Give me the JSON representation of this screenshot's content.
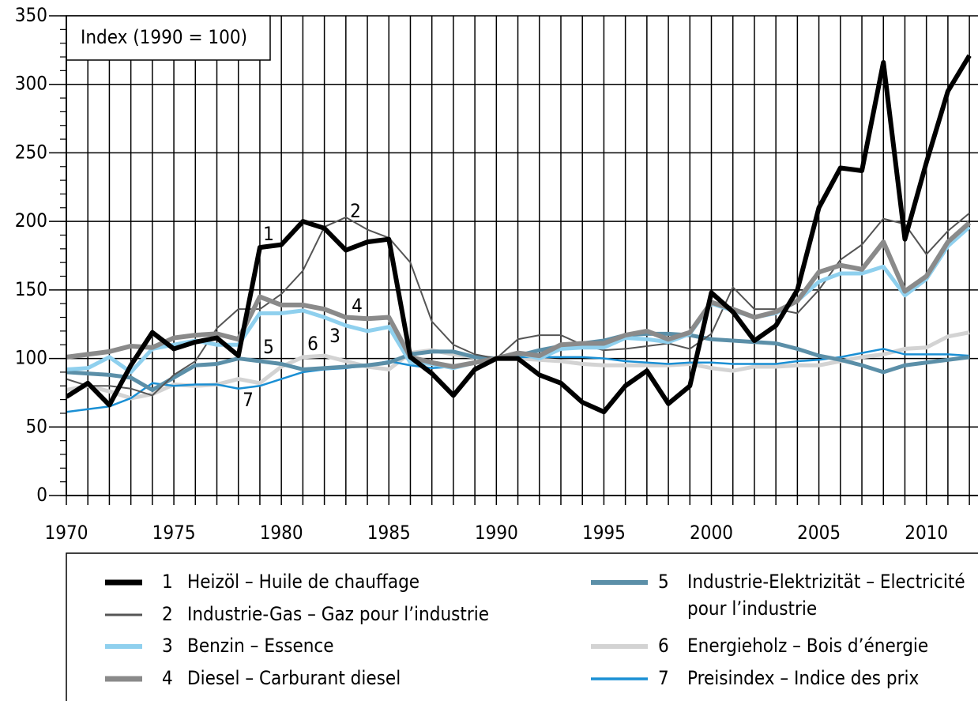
{
  "chart_data": {
    "type": "line",
    "annotation": "Index (1990 = 100)",
    "line_labels": [
      "1",
      "2",
      "3",
      "4",
      "5",
      "6",
      "7"
    ],
    "x": [
      1970,
      1971,
      1972,
      1973,
      1974,
      1975,
      1976,
      1977,
      1978,
      1979,
      1980,
      1981,
      1982,
      1983,
      1984,
      1985,
      1986,
      1987,
      1988,
      1989,
      1990,
      1991,
      1992,
      1993,
      1994,
      1995,
      1996,
      1997,
      1998,
      1999,
      2000,
      2001,
      2002,
      2003,
      2004,
      2005,
      2006,
      2007,
      2008,
      2009,
      2010,
      2011,
      2012
    ],
    "xlim": [
      1970,
      2012.4
    ],
    "xticks": [
      1970,
      1975,
      1980,
      1985,
      1990,
      1995,
      2000,
      2005,
      2010
    ],
    "x_minor_step": 1,
    "ylim": [
      0,
      350
    ],
    "yticks": [
      0,
      50,
      100,
      150,
      200,
      250,
      300,
      350
    ],
    "y_minor_step": 10,
    "grid": true,
    "series": [
      {
        "name": "Heizöl – Huile de chauffage",
        "color": "#000000",
        "values": [
          72,
          82,
          66,
          95,
          119,
          107,
          112,
          115,
          102,
          181,
          183,
          200,
          195,
          179,
          185,
          187,
          101,
          89,
          73,
          92,
          100,
          100,
          88,
          82,
          68,
          61,
          80,
          91,
          67,
          80,
          148,
          134,
          113,
          124,
          150,
          210,
          239,
          237,
          316,
          187,
          243,
          295,
          321
        ]
      },
      {
        "name": "Industrie-Gas – Gaz pour l’industrie",
        "color": "#555555",
        "values": [
          85,
          80,
          80,
          78,
          73,
          88,
          98,
          122,
          136,
          136,
          147,
          164,
          196,
          203,
          194,
          188,
          170,
          127,
          110,
          103,
          100,
          114,
          117,
          117,
          110,
          106,
          107,
          109,
          111,
          107,
          118,
          152,
          136,
          136,
          133,
          150,
          172,
          183,
          202,
          198,
          176,
          193,
          206
        ]
      },
      {
        "name": "Benzin – Essence",
        "color": "#8fd0ee",
        "values": [
          92,
          93,
          101,
          90,
          107,
          110,
          113,
          110,
          110,
          133,
          133,
          135,
          130,
          124,
          120,
          123,
          97,
          96,
          93,
          97,
          100,
          104,
          100,
          107,
          108,
          108,
          115,
          114,
          112,
          118,
          140,
          135,
          130,
          133,
          142,
          156,
          162,
          162,
          167,
          146,
          158,
          182,
          196
        ]
      },
      {
        "name": "Diesel – Carburant diesel",
        "color": "#8a8a8a",
        "values": [
          101,
          103,
          105,
          109,
          108,
          115,
          117,
          118,
          114,
          145,
          139,
          139,
          136,
          130,
          129,
          130,
          101,
          97,
          94,
          97,
          100,
          104,
          102,
          110,
          111,
          111,
          117,
          120,
          114,
          119,
          141,
          136,
          130,
          134,
          142,
          163,
          168,
          165,
          185,
          149,
          160,
          185,
          199
        ]
      },
      {
        "name": "Industrie-Elektrizität – Electricité pour l’industrie",
        "color": "#5b8fa8",
        "values": [
          90,
          89,
          88,
          86,
          77,
          86,
          95,
          96,
          100,
          98,
          96,
          92,
          93,
          94,
          95,
          97,
          103,
          105,
          105,
          101,
          100,
          102,
          106,
          109,
          111,
          113,
          117,
          118,
          118,
          117,
          114,
          113,
          112,
          111,
          107,
          102,
          99,
          95,
          90,
          95,
          97,
          99,
          101
        ]
      },
      {
        "name": "Energieholz – Bois d’énergie",
        "color": "#d3d3d3",
        "values": [
          77,
          80,
          76,
          71,
          74,
          81,
          80,
          81,
          85,
          82,
          94,
          101,
          102,
          98,
          94,
          92,
          104,
          106,
          103,
          101,
          100,
          100,
          99,
          98,
          96,
          95,
          95,
          95,
          95,
          96,
          93,
          91,
          94,
          94,
          95,
          95,
          98,
          101,
          103,
          107,
          108,
          116,
          119
        ]
      },
      {
        "name": "Preisindex – Indice des prix",
        "color": "#1a8fd4",
        "values": [
          61,
          63,
          65,
          71,
          82,
          80,
          81,
          81,
          78,
          80,
          85,
          90,
          92,
          93,
          95,
          98,
          95,
          93,
          94,
          97,
          100,
          101,
          101,
          101,
          101,
          100,
          98,
          97,
          96,
          97,
          97,
          96,
          96,
          96,
          98,
          99,
          101,
          104,
          107,
          103,
          103,
          103,
          102
        ]
      }
    ]
  }
}
